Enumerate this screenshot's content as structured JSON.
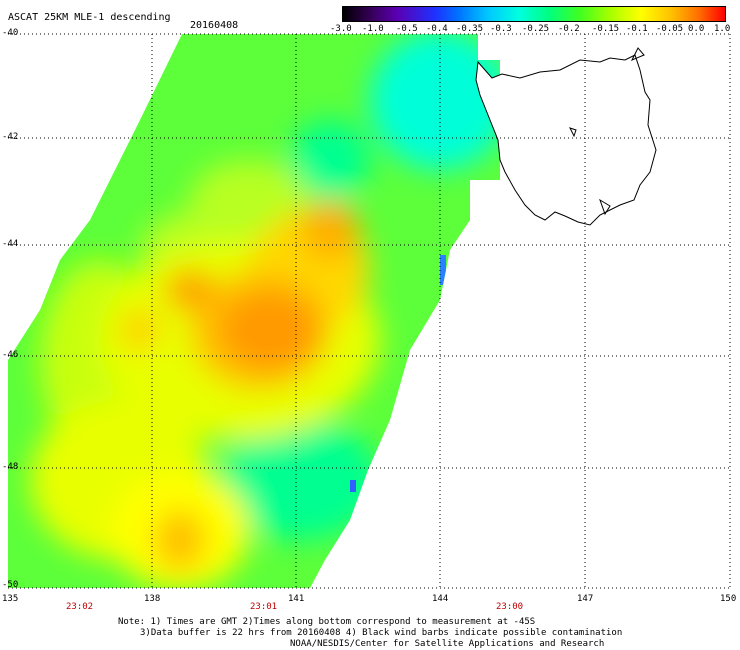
{
  "header": {
    "title": "ASCAT 25KM MLE-1 descending",
    "date": "20160408"
  },
  "colorbar": {
    "labels": [
      "-3.0",
      "-1.0",
      "-0.5",
      "-0.4",
      "-0.35",
      "-0.3",
      "-0.25",
      "-0.2",
      "-0.15",
      "-0.1",
      "-0.05",
      "0.0",
      "1.0"
    ]
  },
  "axes": {
    "lat_labels": [
      "-40",
      "-42",
      "-44",
      "-46",
      "-48",
      "-50"
    ],
    "lon_labels": [
      "135",
      "138",
      "141",
      "144",
      "147",
      "150"
    ],
    "time_labels": [
      "23:02",
      "23:01",
      "23:00"
    ]
  },
  "notes": {
    "line1": "Note: 1) Times are GMT 2)Times along bottom correspond to measurement at -45S",
    "line2": "3)Data buffer is 22 hrs from 20160408 4) Black wind barbs indicate possible contamination",
    "line3": "NOAA/NESDIS/Center for Satellite Applications and Research"
  },
  "colors": {
    "grid": "#000000",
    "time_text": "#c00000"
  }
}
